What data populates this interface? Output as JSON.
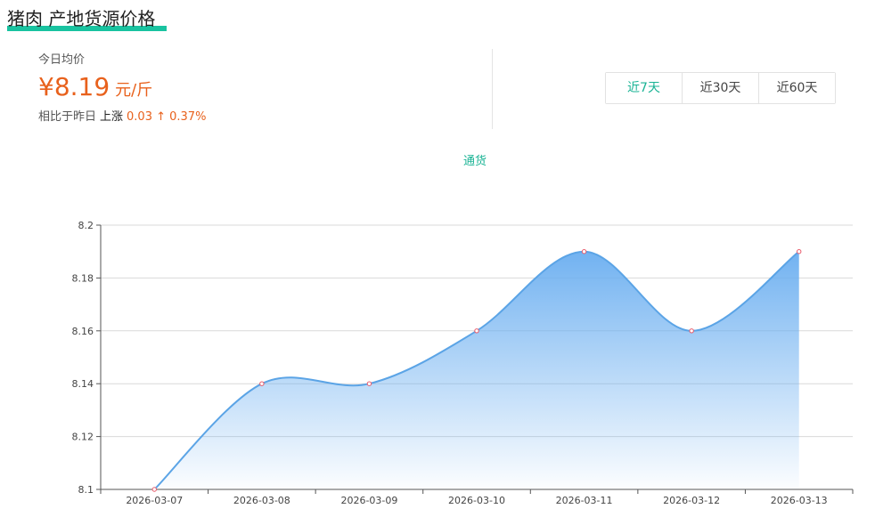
{
  "header": {
    "title": "猪肉 产地货源价格"
  },
  "summary": {
    "today_label": "今日均价",
    "price": "¥8.19",
    "unit": "元/斤",
    "compare_label": "相比于昨日",
    "trend": "上涨",
    "change": "0.03 ↑ 0.37%"
  },
  "range_tabs": [
    {
      "label": "近7天",
      "active": true
    },
    {
      "label": "近30天",
      "active": false
    },
    {
      "label": "近60天",
      "active": false
    }
  ],
  "series_label": "通货",
  "colors": {
    "accent": "#19b394",
    "price": "#e8611c",
    "line": "#5ba4e6",
    "area_top": "#6aaef0",
    "point": "#e85a6a"
  },
  "chart_data": {
    "type": "area",
    "x": [
      "2026-03-07",
      "2026-03-08",
      "2026-03-09",
      "2026-03-10",
      "2026-03-11",
      "2026-03-12",
      "2026-03-13"
    ],
    "series": [
      {
        "name": "通货",
        "values": [
          8.1,
          8.14,
          8.14,
          8.16,
          8.19,
          8.16,
          8.19
        ]
      }
    ],
    "ylim": [
      8.1,
      8.2
    ],
    "yticks": [
      "8.1",
      "8.12",
      "8.14",
      "8.16",
      "8.18",
      "8.2"
    ],
    "smooth": true,
    "grid": true
  }
}
